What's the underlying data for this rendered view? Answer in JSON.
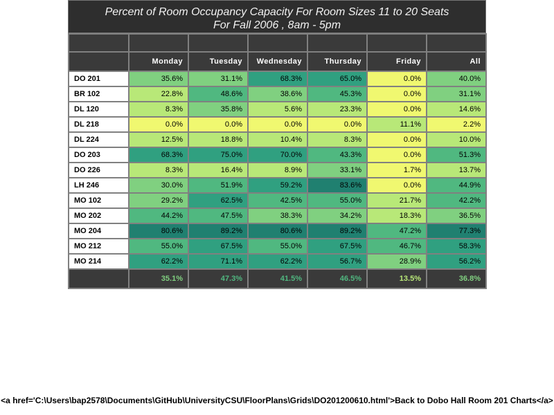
{
  "title_line1": "Percent of Room Occupancy Capacity For Room Sizes 11 to 20 Seats",
  "title_line2": "For Fall 2006  , 8am - 5pm",
  "footer_text": "<a href='C:\\Users\\bap2578\\Documents\\GitHub\\UniversityCSU\\FloorPlans\\Grids\\DO201200610.html'>Back to Dobo Hall Room 201 Charts</a>",
  "chart_data": {
    "type": "heatmap",
    "columns": [
      "Monday",
      "Tuesday",
      "Wednesday",
      "Thursday",
      "Friday",
      "All"
    ],
    "rows": [
      "DO 201",
      "BR 102",
      "DL 120",
      "DL 218",
      "DL 224",
      "DO 203",
      "DO 226",
      "LH 246",
      "MO 102",
      "MO 202",
      "MO 204",
      "MO 212",
      "MO 214"
    ],
    "values": [
      [
        35.6,
        31.1,
        68.3,
        65.0,
        0.0,
        40.0
      ],
      [
        22.8,
        48.6,
        38.6,
        45.3,
        0.0,
        31.1
      ],
      [
        8.3,
        35.8,
        5.6,
        23.3,
        0.0,
        14.6
      ],
      [
        0.0,
        0.0,
        0.0,
        0.0,
        11.1,
        2.2
      ],
      [
        12.5,
        18.8,
        10.4,
        8.3,
        0.0,
        10.0
      ],
      [
        68.3,
        75.0,
        70.0,
        43.3,
        0.0,
        51.3
      ],
      [
        8.3,
        16.4,
        8.9,
        33.1,
        1.7,
        13.7
      ],
      [
        30.0,
        51.9,
        59.2,
        83.6,
        0.0,
        44.9
      ],
      [
        29.2,
        62.5,
        42.5,
        55.0,
        21.7,
        42.2
      ],
      [
        44.2,
        47.5,
        38.3,
        34.2,
        18.3,
        36.5
      ],
      [
        80.6,
        89.2,
        80.6,
        89.2,
        47.2,
        77.3
      ],
      [
        55.0,
        67.5,
        55.0,
        67.5,
        46.7,
        58.3
      ],
      [
        62.2,
        71.1,
        62.2,
        56.7,
        28.9,
        56.2
      ]
    ],
    "totals": [
      35.1,
      47.3,
      41.5,
      46.5,
      13.5,
      36.8
    ],
    "value_suffix": "%",
    "color_scale": [
      "#f0f870",
      "#b8e878",
      "#80d080",
      "#50b880",
      "#30a080",
      "#208070"
    ]
  }
}
